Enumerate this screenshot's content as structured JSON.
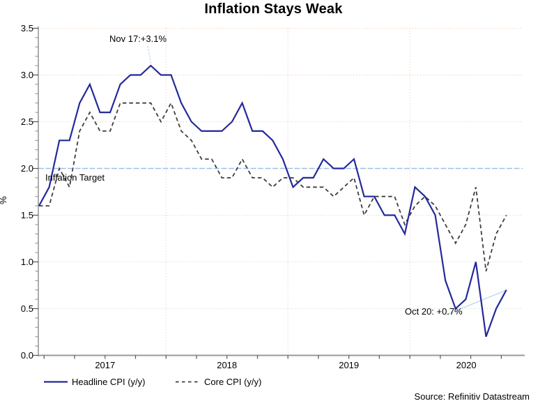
{
  "title": "Inflation Stays Weak",
  "source": "Source: Refinitiv Datastream",
  "annotations": {
    "peak_label": "Nov 17:+3.1%",
    "latest_label": "Oct 20: +0.7%",
    "target_label": "Inflation Target"
  },
  "legend": [
    {
      "label": "Headline CPI (y/y)",
      "style": "solid",
      "color": "#23299b"
    },
    {
      "label": "Core CPI (y/y)",
      "style": "dashed",
      "color": "#3d3d3d"
    }
  ],
  "colors": {
    "headline": "#23299b",
    "core": "#3d3d3d",
    "target_line": "#9dc1e5",
    "callout": "#b4d0ec",
    "grid_warm": "#f2cdb4",
    "grid_green": "#c9e0c9",
    "grid_vertical": "#f4cfc6",
    "axis": "#9a9a9a",
    "tick_major": "#555555",
    "tick_minor": "#8a8a8a",
    "text": "#000000"
  },
  "chart_data": {
    "type": "line",
    "title": "Inflation Stays Weak",
    "xlabel": "",
    "ylabel": "%",
    "ylim": [
      0.0,
      3.5
    ],
    "ytick_step": 0.5,
    "yticks": [
      "0.0",
      "0.5",
      "1.0",
      "1.5",
      "2.0",
      "2.5",
      "3.0",
      "3.5"
    ],
    "year_labels": [
      "2017",
      "2018",
      "2019",
      "2020"
    ],
    "grid": true,
    "legend_position": "bottom-left",
    "x_frequency": "monthly",
    "x": [
      "Dec-16",
      "Jan-17",
      "Feb-17",
      "Mar-17",
      "Apr-17",
      "May-17",
      "Jun-17",
      "Jul-17",
      "Aug-17",
      "Sep-17",
      "Oct-17",
      "Nov-17",
      "Dec-17",
      "Jan-18",
      "Feb-18",
      "Mar-18",
      "Apr-18",
      "May-18",
      "Jun-18",
      "Jul-18",
      "Aug-18",
      "Sep-18",
      "Oct-18",
      "Nov-18",
      "Dec-18",
      "Jan-19",
      "Feb-19",
      "Mar-19",
      "Apr-19",
      "May-19",
      "Jun-19",
      "Jul-19",
      "Aug-19",
      "Sep-19",
      "Oct-19",
      "Nov-19",
      "Dec-19",
      "Jan-20",
      "Feb-20",
      "Mar-20",
      "Apr-20",
      "May-20",
      "Jun-20",
      "Jul-20",
      "Aug-20",
      "Sep-20",
      "Oct-20"
    ],
    "series": [
      {
        "name": "Headline CPI (y/y)",
        "style": "solid",
        "values": [
          1.6,
          1.8,
          2.3,
          2.3,
          2.7,
          2.9,
          2.6,
          2.6,
          2.9,
          3.0,
          3.0,
          3.1,
          3.0,
          3.0,
          2.7,
          2.5,
          2.4,
          2.4,
          2.4,
          2.5,
          2.7,
          2.4,
          2.4,
          2.3,
          2.1,
          1.8,
          1.9,
          1.9,
          2.1,
          2.0,
          2.0,
          2.1,
          1.7,
          1.7,
          1.5,
          1.5,
          1.3,
          1.8,
          1.7,
          1.5,
          0.8,
          0.5,
          0.6,
          1.0,
          0.2,
          0.5,
          0.7
        ]
      },
      {
        "name": "Core CPI (y/y)",
        "style": "dashed",
        "values": [
          1.6,
          1.6,
          2.0,
          1.8,
          2.4,
          2.6,
          2.4,
          2.4,
          2.7,
          2.7,
          2.7,
          2.7,
          2.5,
          2.7,
          2.4,
          2.3,
          2.1,
          2.1,
          1.9,
          1.9,
          2.1,
          1.9,
          1.9,
          1.8,
          1.9,
          1.9,
          1.8,
          1.8,
          1.8,
          1.7,
          1.8,
          1.9,
          1.5,
          1.7,
          1.7,
          1.7,
          1.4,
          1.6,
          1.7,
          1.6,
          1.4,
          1.2,
          1.4,
          1.8,
          0.9,
          1.3,
          1.5
        ]
      }
    ],
    "reference_line": {
      "label": "Inflation Target",
      "value": 2.0
    },
    "point_annotations": [
      {
        "text": "Nov 17:+3.1%",
        "x": "Nov-17",
        "value": 3.1,
        "series": "Headline CPI (y/y)"
      },
      {
        "text": "Oct 20: +0.7%",
        "x": "Oct-20",
        "value": 0.7,
        "series": "Headline CPI (y/y)"
      }
    ]
  }
}
